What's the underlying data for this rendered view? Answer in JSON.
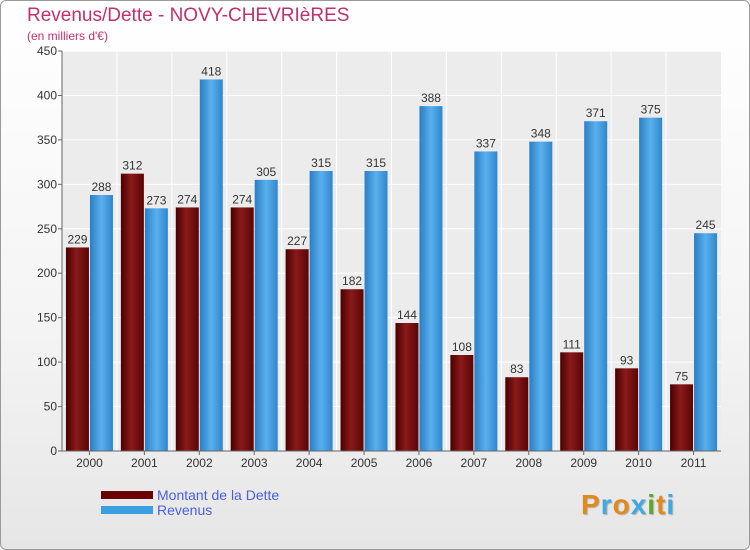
{
  "header": {
    "title": "Revenus/Dette - NOVY-CHEVRIèRES",
    "subtitle": "(en milliers d'€)"
  },
  "colors": {
    "dette": "#7a1010",
    "revenus": "#3d9ee0",
    "title": "#c0306e",
    "legend_text": "#4a5fe0"
  },
  "legend": {
    "items": [
      {
        "label": "Montant de la Dette",
        "color": "#6b0000"
      },
      {
        "label": "Revenus",
        "color": "#3d9ee0"
      }
    ]
  },
  "logo": {
    "text": "Proxiti",
    "letter_colors": [
      "#e08a1e",
      "#3fa9e0",
      "#e08a1e",
      "#3fa9e0",
      "#5aaa2a",
      "#e08a1e",
      "#3fa9e0"
    ]
  },
  "chart_data": {
    "type": "bar",
    "title": "Revenus/Dette - NOVY-CHEVRIèRES",
    "subtitle": "(en milliers d'€)",
    "categories": [
      "2000",
      "2001",
      "2002",
      "2003",
      "2004",
      "2005",
      "2006",
      "2007",
      "2008",
      "2009",
      "2010",
      "2011"
    ],
    "series": [
      {
        "name": "Montant de la Dette",
        "values": [
          229,
          312,
          274,
          274,
          227,
          182,
          144,
          108,
          83,
          111,
          93,
          75
        ]
      },
      {
        "name": "Revenus",
        "values": [
          288,
          273,
          418,
          305,
          315,
          315,
          388,
          337,
          348,
          371,
          375,
          245
        ]
      }
    ],
    "ylim": [
      0,
      450
    ],
    "yticks": [
      0,
      50,
      100,
      150,
      200,
      250,
      300,
      350,
      400,
      450
    ],
    "grid": true,
    "legend_position": "bottom-left"
  }
}
